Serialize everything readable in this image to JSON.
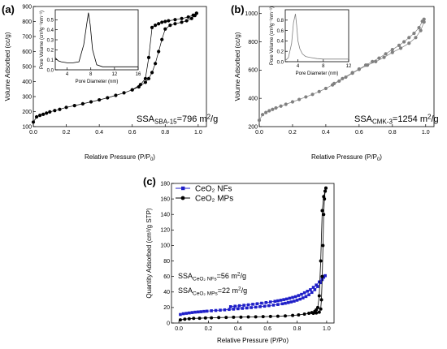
{
  "chart_data": [
    {
      "panel": "(a)",
      "type": "line",
      "xlabel": "Relative Pressure (P/P",
      "xlabel_sub": "0",
      "xlabel_end": ")",
      "ylabel": "Volume Adsorbed (cc/g)",
      "xlim": [
        0.0,
        1.05
      ],
      "ylim": [
        100,
        900
      ],
      "xticks": [
        0.0,
        0.2,
        0.4,
        0.6,
        0.8,
        1.0
      ],
      "xtick_labels": [
        "0.0",
        "0.2",
        "0.4",
        "0.6",
        "0.8",
        "1.0"
      ],
      "yticks": [
        100,
        200,
        300,
        400,
        500,
        600,
        700,
        800,
        900
      ],
      "ytick_labels": [
        "100",
        "200",
        "300",
        "400",
        "500",
        "600",
        "700",
        "800",
        "900"
      ],
      "color": "#000000",
      "annotation": {
        "prefix": "SSA",
        "sub": "SBA-15",
        "text": "=796 m",
        "sup": "2",
        "suffix": "/g"
      },
      "series": [
        {
          "role": "adsorption",
          "x": [
            0.0,
            0.02,
            0.04,
            0.06,
            0.08,
            0.1,
            0.13,
            0.16,
            0.2,
            0.25,
            0.3,
            0.35,
            0.4,
            0.45,
            0.5,
            0.55,
            0.6,
            0.64,
            0.68,
            0.7,
            0.72,
            0.74,
            0.76,
            0.78,
            0.8,
            0.83,
            0.86,
            0.9,
            0.93,
            0.96,
            0.98,
            0.99
          ],
          "y": [
            130,
            165,
            175,
            182,
            190,
            198,
            207,
            215,
            228,
            240,
            252,
            265,
            278,
            292,
            308,
            325,
            345,
            365,
            395,
            420,
            460,
            520,
            600,
            680,
            750,
            775,
            785,
            795,
            805,
            820,
            840,
            855
          ]
        },
        {
          "role": "desorption",
          "x": [
            0.99,
            0.97,
            0.94,
            0.9,
            0.86,
            0.82,
            0.8,
            0.78,
            0.76,
            0.74,
            0.72,
            0.7,
            0.68,
            0.65,
            0.6
          ],
          "y": [
            855,
            842,
            830,
            820,
            812,
            805,
            800,
            795,
            785,
            775,
            760,
            560,
            420,
            380,
            345
          ]
        }
      ],
      "inset": {
        "xlabel": "Pore Diameter (nm)",
        "ylabel": "Pore Volume (cm³g⁻¹nm⁻¹)",
        "xlim": [
          2,
          16
        ],
        "ylim": [
          0.0,
          0.6
        ],
        "xticks": [
          4,
          8,
          12,
          16
        ],
        "xtick_labels": [
          "4",
          "8",
          "12",
          "16"
        ],
        "yticks": [
          0.0,
          0.1,
          0.2,
          0.3,
          0.4,
          0.5
        ],
        "ytick_labels": [
          "0.0",
          "0.1",
          "0.2",
          "0.3",
          "0.4",
          "0.5"
        ],
        "x": [
          2.0,
          2.5,
          3.0,
          4.0,
          5.0,
          6.0,
          6.8,
          7.3,
          7.6,
          7.9,
          8.3,
          9.0,
          10,
          11,
          12,
          13,
          14,
          15,
          16
        ],
        "y": [
          0.12,
          0.09,
          0.08,
          0.07,
          0.07,
          0.08,
          0.25,
          0.45,
          0.57,
          0.45,
          0.2,
          0.05,
          0.03,
          0.03,
          0.03,
          0.03,
          0.03,
          0.03,
          0.03
        ]
      }
    },
    {
      "panel": "(b)",
      "type": "line",
      "xlabel": "Relative Pressure (P/P",
      "xlabel_sub": "0",
      "xlabel_end": ")",
      "ylabel": "Volume Adsorbed (cc/g)",
      "xlim": [
        0.0,
        1.05
      ],
      "ylim": [
        200,
        1050
      ],
      "xticks": [
        0.0,
        0.2,
        0.4,
        0.6,
        0.8,
        1.0
      ],
      "xtick_labels": [
        "0.0",
        "0.2",
        "0.4",
        "0.6",
        "0.8",
        "1.0"
      ],
      "yticks": [
        200,
        400,
        600,
        800,
        1000
      ],
      "ytick_labels": [
        "200",
        "400",
        "600",
        "800",
        "1000"
      ],
      "color": "#808080",
      "annotation": {
        "prefix": "SSA",
        "sub": "CMK-3",
        "text": "=1254 m",
        "sup": "2",
        "suffix": "/g"
      },
      "series": [
        {
          "role": "adsorption",
          "x": [
            0.0,
            0.02,
            0.04,
            0.06,
            0.08,
            0.1,
            0.13,
            0.16,
            0.2,
            0.24,
            0.28,
            0.32,
            0.36,
            0.4,
            0.44,
            0.48,
            0.52,
            0.56,
            0.6,
            0.65,
            0.7,
            0.75,
            0.8,
            0.85,
            0.9,
            0.94,
            0.97,
            0.99
          ],
          "y": [
            245,
            285,
            300,
            312,
            322,
            332,
            345,
            358,
            375,
            392,
            410,
            428,
            448,
            470,
            495,
            522,
            550,
            578,
            605,
            635,
            660,
            690,
            725,
            755,
            790,
            830,
            880,
            940
          ]
        },
        {
          "role": "desorption",
          "x": [
            0.99,
            0.98,
            0.96,
            0.93,
            0.9,
            0.87,
            0.84,
            0.8,
            0.76,
            0.72,
            0.68,
            0.64,
            0.6,
            0.56,
            0.5,
            0.45
          ],
          "y": [
            960,
            945,
            900,
            860,
            830,
            800,
            775,
            745,
            715,
            685,
            660,
            635,
            608,
            582,
            540,
            505
          ]
        }
      ],
      "inset": {
        "xlabel": "Pore Diameter (nm)",
        "ylabel": "Pore Volume (cm³g⁻¹nm⁻¹)",
        "xlim": [
          2,
          12
        ],
        "ylim": [
          0.0,
          1.0
        ],
        "xticks": [
          4,
          8,
          12
        ],
        "xtick_labels": [
          "4",
          "8",
          "12"
        ],
        "yticks": [
          0.0,
          0.2,
          0.4,
          0.6,
          0.8
        ],
        "ytick_labels": [
          "0.0",
          "0.2",
          "0.4",
          "0.6",
          "0.8"
        ],
        "x": [
          2.0,
          2.5,
          3.0,
          3.3,
          3.6,
          3.8,
          4.0,
          4.3,
          4.7,
          5.2,
          6,
          7,
          8,
          9,
          10,
          11,
          12
        ],
        "y": [
          0.02,
          0.08,
          0.35,
          0.75,
          0.92,
          0.7,
          0.4,
          0.25,
          0.15,
          0.1,
          0.08,
          0.06,
          0.05,
          0.05,
          0.05,
          0.05,
          0.05
        ]
      }
    },
    {
      "panel": "(c)",
      "type": "line",
      "xlabel": "Relative Pressure (P/Po)",
      "ylabel": "Quantity Adsorbed (cm³/g STP)",
      "xlim": [
        -0.05,
        1.05
      ],
      "ylim": [
        0,
        180
      ],
      "xticks": [
        0.0,
        0.2,
        0.4,
        0.6,
        0.8,
        1.0
      ],
      "xtick_labels": [
        "0.0",
        "0.2",
        "0.4",
        "0.6",
        "0.8",
        "1.0"
      ],
      "yticks": [
        0,
        20,
        40,
        60,
        80,
        100,
        120,
        140,
        160,
        180
      ],
      "ytick_labels": [
        "0",
        "20",
        "40",
        "60",
        "80",
        "100",
        "120",
        "140",
        "160",
        "180"
      ],
      "legend": [
        "CeO₂ NFs",
        "CeO₂ MPs"
      ],
      "legend_colors": [
        "#1f1fc8",
        "#000000"
      ],
      "annotations": [
        {
          "prefix": "SSA",
          "sub": "CeO₂ NFs",
          "text": "=56 m",
          "sup": "2",
          "suffix": "/g"
        },
        {
          "prefix": "SSA",
          "sub": "CeO₂ MPs",
          "text": "=22 m",
          "sup": "2",
          "suffix": "/g"
        }
      ],
      "series": [
        {
          "name": "CeO₂ NFs",
          "color": "#1f1fc8",
          "marker": "square",
          "x": [
            0.01,
            0.03,
            0.05,
            0.07,
            0.09,
            0.11,
            0.13,
            0.15,
            0.17,
            0.19,
            0.22,
            0.25,
            0.28,
            0.31,
            0.34,
            0.37,
            0.4,
            0.43,
            0.46,
            0.49,
            0.52,
            0.55,
            0.58,
            0.61,
            0.64,
            0.67,
            0.7,
            0.72,
            0.74,
            0.76,
            0.78,
            0.8,
            0.82,
            0.84,
            0.86,
            0.88,
            0.9,
            0.92,
            0.94,
            0.96,
            0.97,
            0.98,
            0.99
          ],
          "y": [
            11,
            12,
            12.5,
            13,
            13.5,
            14,
            14.3,
            14.6,
            15,
            15.3,
            15.8,
            16.2,
            16.6,
            17,
            17.5,
            17.9,
            18.4,
            18.9,
            19.4,
            19.9,
            20.5,
            21.1,
            21.7,
            22.4,
            23.1,
            23.9,
            24.8,
            25.5,
            26.3,
            27.2,
            28.2,
            29.4,
            30.8,
            32.4,
            34.2,
            36.5,
            39.5,
            43,
            47,
            52,
            56,
            59,
            61
          ]
        },
        {
          "name": "CeO₂ NFs desorption",
          "color": "#1f1fc8",
          "marker": "square",
          "x": [
            0.99,
            0.97,
            0.95,
            0.93,
            0.91,
            0.89,
            0.87,
            0.85,
            0.83,
            0.81,
            0.79,
            0.77,
            0.75,
            0.73,
            0.71,
            0.69,
            0.67,
            0.65,
            0.62,
            0.59,
            0.56,
            0.53,
            0.5,
            0.47,
            0.44,
            0.41,
            0.38,
            0.35
          ],
          "y": [
            61,
            58,
            53,
            49,
            46,
            43,
            41,
            39,
            37,
            35.5,
            34,
            33,
            32,
            31,
            30.2,
            29.4,
            28.7,
            28,
            27.2,
            26.4,
            25.6,
            24.9,
            24.2,
            23.5,
            22.9,
            22.3,
            21.7,
            21.1
          ]
        },
        {
          "name": "CeO₂ MPs",
          "color": "#000000",
          "marker": "circle",
          "x": [
            0.01,
            0.04,
            0.07,
            0.1,
            0.14,
            0.18,
            0.22,
            0.27,
            0.32,
            0.37,
            0.42,
            0.47,
            0.52,
            0.57,
            0.62,
            0.67,
            0.72,
            0.77,
            0.81,
            0.85,
            0.88,
            0.9,
            0.92,
            0.93,
            0.94,
            0.95,
            0.96,
            0.97,
            0.98,
            0.99,
            0.995
          ],
          "y": [
            4,
            5,
            5.5,
            6,
            6.2,
            6.5,
            6.7,
            7,
            7.2,
            7.4,
            7.6,
            7.8,
            8,
            8.2,
            8.5,
            8.8,
            9.2,
            9.8,
            10.5,
            11.5,
            12.5,
            13.5,
            15,
            17,
            20,
            35,
            80,
            145,
            163,
            170,
            174
          ]
        },
        {
          "name": "CeO₂ MPs desorption",
          "color": "#000000",
          "marker": "circle",
          "x": [
            0.995,
            0.99,
            0.985,
            0.98,
            0.975,
            0.97,
            0.965,
            0.96,
            0.95,
            0.93,
            0.91
          ],
          "y": [
            174,
            170,
            160,
            140,
            100,
            60,
            30,
            18,
            14,
            13,
            12.5
          ]
        }
      ]
    }
  ]
}
